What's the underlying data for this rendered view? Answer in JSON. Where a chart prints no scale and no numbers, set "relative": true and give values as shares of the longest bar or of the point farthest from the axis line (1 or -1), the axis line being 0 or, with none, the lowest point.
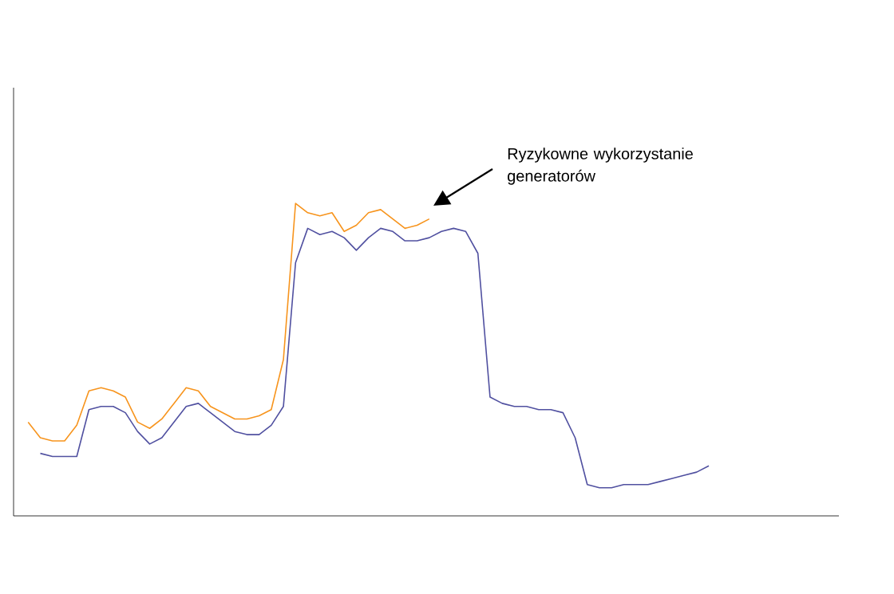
{
  "chart_data": {
    "type": "line",
    "relative": true,
    "categories": [
      null,
      null,
      null,
      null,
      null,
      null,
      null,
      null,
      null,
      null,
      null,
      null,
      null,
      null,
      null,
      null,
      null,
      null,
      null,
      null,
      null,
      null,
      null,
      null,
      null,
      null,
      null,
      null,
      null,
      null,
      null,
      null,
      null,
      null,
      null,
      null,
      null,
      null,
      null,
      null,
      null,
      null,
      null,
      null,
      null,
      null,
      null,
      null,
      null,
      null,
      null,
      null,
      null,
      null,
      null,
      null,
      null
    ],
    "series": [
      {
        "color": "#f7941d",
        "values": [
          0.3,
          0.25,
          0.24,
          0.24,
          0.29,
          0.4,
          0.41,
          0.4,
          0.38,
          0.3,
          0.28,
          0.31,
          0.36,
          0.41,
          0.4,
          0.35,
          0.33,
          0.31,
          0.31,
          0.32,
          0.34,
          0.5,
          1.0,
          0.97,
          0.96,
          0.97,
          0.91,
          0.93,
          0.97,
          0.98,
          0.95,
          0.92,
          0.93,
          0.95,
          null,
          null,
          null,
          null,
          null,
          null,
          null,
          null,
          null,
          null,
          null,
          null,
          null,
          null,
          null,
          null,
          null,
          null,
          null,
          null,
          null,
          null,
          null
        ]
      },
      {
        "color": "#5050a0",
        "values": [
          null,
          0.2,
          0.19,
          0.19,
          0.19,
          0.34,
          0.35,
          0.35,
          0.33,
          0.27,
          0.23,
          0.25,
          0.3,
          0.35,
          0.36,
          0.33,
          0.3,
          0.27,
          0.26,
          0.26,
          0.29,
          0.35,
          0.81,
          0.92,
          0.9,
          0.91,
          0.89,
          0.85,
          0.89,
          0.92,
          0.91,
          0.88,
          0.88,
          0.89,
          0.91,
          0.92,
          0.91,
          0.84,
          0.38,
          0.36,
          0.35,
          0.35,
          0.34,
          0.34,
          0.33,
          0.25,
          0.1,
          0.09,
          0.09,
          0.1,
          0.1,
          0.1,
          0.11,
          0.12,
          0.13,
          0.14,
          0.16
        ]
      }
    ],
    "annotations": [
      "Ryzykowne wykorzystanie generatorów"
    ]
  }
}
